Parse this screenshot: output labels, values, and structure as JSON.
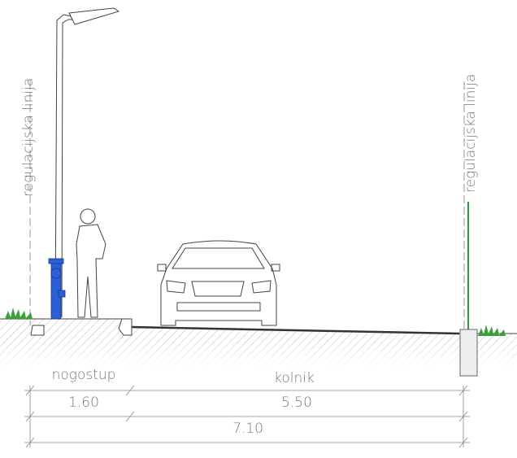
{
  "left_label": "regulacijska linija",
  "right_label": "regulacijska linija",
  "zones": {
    "sidewalk": "nogostup",
    "roadway": "kolnik"
  },
  "dimensions": {
    "sidewalk_width": "1.60",
    "roadway_width": "5.50",
    "total_width": "7.10"
  }
}
